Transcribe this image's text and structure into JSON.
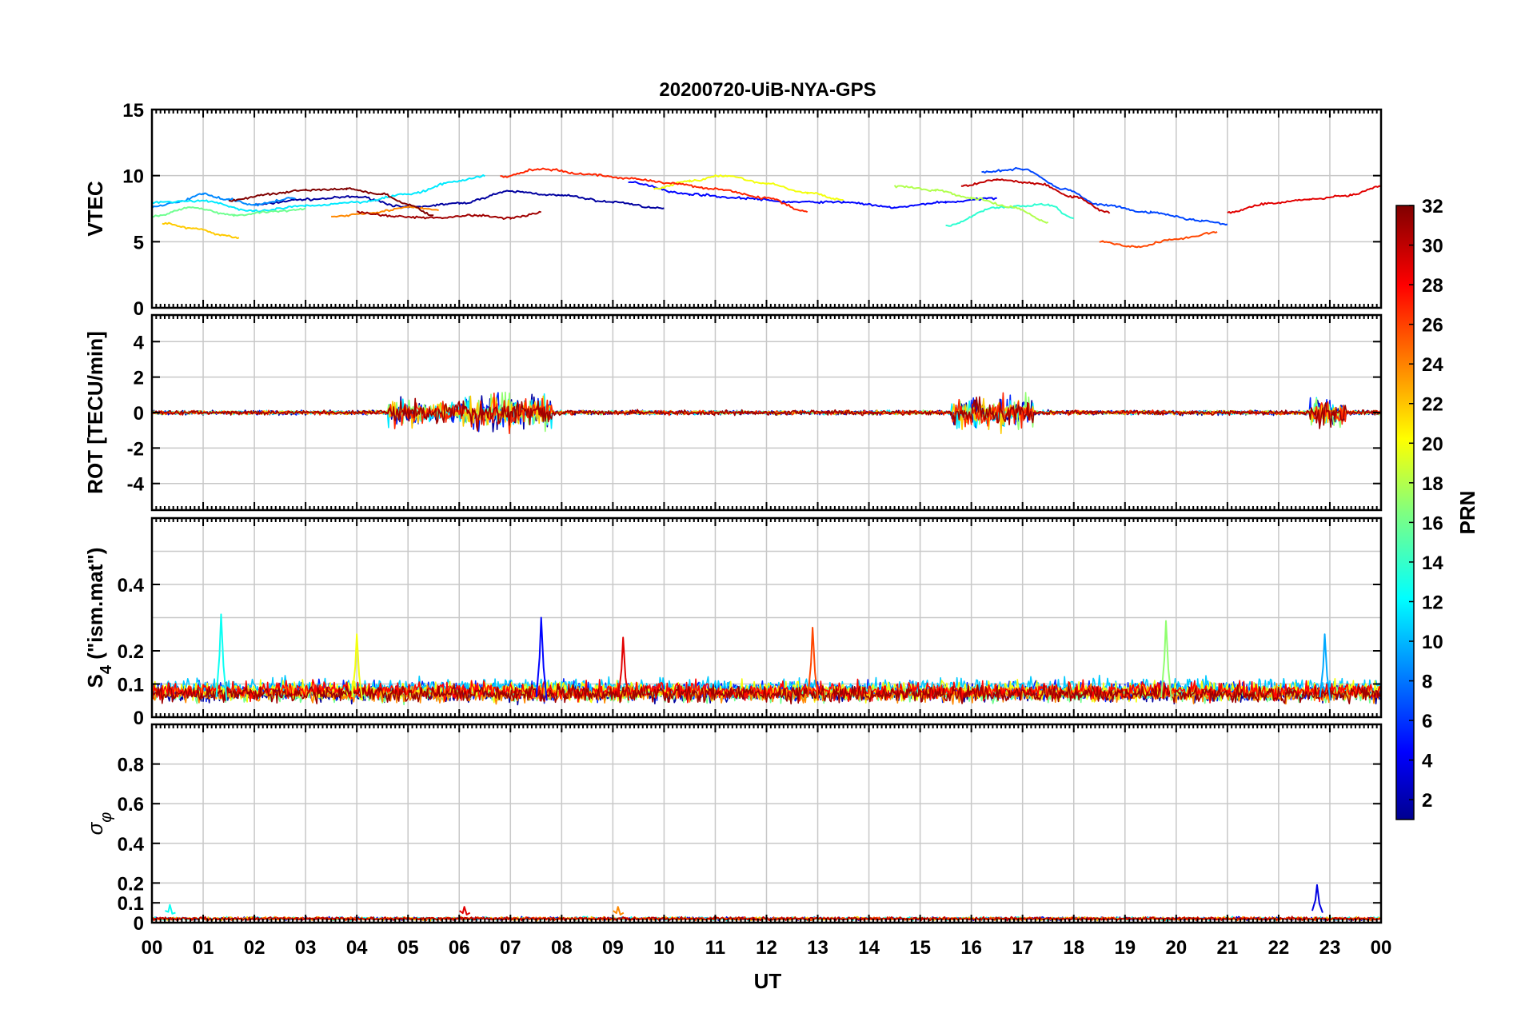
{
  "chart_data": {
    "type": "line",
    "title": "20200720-UiB-NYA-GPS",
    "xlabel": "UT",
    "x_tick_labels": [
      "00",
      "01",
      "02",
      "03",
      "04",
      "05",
      "06",
      "07",
      "08",
      "09",
      "10",
      "11",
      "12",
      "13",
      "14",
      "15",
      "16",
      "17",
      "18",
      "19",
      "20",
      "21",
      "22",
      "23",
      "00"
    ],
    "xlim": [
      0,
      24
    ],
    "grid": true,
    "colormap": "jet",
    "colorbar": {
      "label": "PRN",
      "range": [
        1,
        32
      ],
      "tick_labels": [
        "2",
        "4",
        "6",
        "8",
        "10",
        "12",
        "14",
        "16",
        "18",
        "20",
        "22",
        "24",
        "26",
        "28",
        "30",
        "32"
      ]
    },
    "panels": [
      {
        "ylabel": "VTEC",
        "ylim": [
          0,
          15
        ],
        "y_ticks": [
          0,
          5,
          10,
          15
        ],
        "y_tick_labels": [
          "0",
          "5",
          "10",
          "15"
        ],
        "style": "smooth",
        "series": [
          {
            "prn": 2,
            "x": [
              2.0,
              3.0,
              4.0,
              5.0,
              6.0,
              7.0,
              8.0,
              9.0,
              10.0
            ],
            "y": [
              7.8,
              8.2,
              8.4,
              7.6,
              7.9,
              8.8,
              8.5,
              8.0,
              7.5
            ]
          },
          {
            "prn": 5,
            "x": [
              9.3,
              10.5,
              11.5,
              12.5,
              13.5,
              14.5,
              15.5,
              16.5
            ],
            "y": [
              9.5,
              8.6,
              8.3,
              8.0,
              8.0,
              7.6,
              8.0,
              8.3
            ]
          },
          {
            "prn": 7,
            "x": [
              16.2,
              17.0,
              17.8,
              18.5,
              19.5,
              20.5,
              21.0
            ],
            "y": [
              10.3,
              10.5,
              9.0,
              7.8,
              7.2,
              6.6,
              6.3
            ]
          },
          {
            "prn": 9,
            "x": [
              0.0,
              0.5,
              1.0,
              1.5,
              2.0,
              2.8
            ],
            "y": [
              7.6,
              8.0,
              8.6,
              8.2,
              7.8,
              8.3
            ]
          },
          {
            "prn": 12,
            "x": [
              0.0,
              1.0,
              2.0,
              3.0,
              4.0,
              5.0,
              6.0,
              6.5
            ],
            "y": [
              8.0,
              8.1,
              7.3,
              7.7,
              8.0,
              8.6,
              9.6,
              10.0
            ]
          },
          {
            "prn": 14,
            "x": [
              15.5,
              16.5,
              17.5,
              18.0
            ],
            "y": [
              6.2,
              7.6,
              7.8,
              6.8
            ]
          },
          {
            "prn": 16,
            "x": [
              0.0,
              0.8,
              1.6,
              2.4,
              3.0
            ],
            "y": [
              6.9,
              7.6,
              7.0,
              7.3,
              7.5
            ]
          },
          {
            "prn": 18,
            "x": [
              14.5,
              15.3,
              16.0,
              16.8,
              17.5
            ],
            "y": [
              9.2,
              8.9,
              8.3,
              7.6,
              6.5
            ]
          },
          {
            "prn": 20,
            "x": [
              9.8,
              10.5,
              11.2,
              12.0,
              12.8,
              13.5
            ],
            "y": [
              9.0,
              9.6,
              10.0,
              9.4,
              8.7,
              8.2
            ]
          },
          {
            "prn": 22,
            "x": [
              0.2,
              0.8,
              1.4,
              1.7
            ],
            "y": [
              6.4,
              6.0,
              5.5,
              5.3
            ]
          },
          {
            "prn": 24,
            "x": [
              3.5,
              4.3,
              5.0,
              5.6
            ],
            "y": [
              6.9,
              7.2,
              7.6,
              7.4
            ]
          },
          {
            "prn": 26,
            "x": [
              18.5,
              19.2,
              20.0,
              20.8
            ],
            "y": [
              5.0,
              4.6,
              5.2,
              5.7
            ]
          },
          {
            "prn": 27,
            "x": [
              6.8,
              7.6,
              8.5,
              9.3,
              10.2,
              11.0,
              12.0,
              12.8
            ],
            "y": [
              9.9,
              10.5,
              10.1,
              9.8,
              9.4,
              9.0,
              8.3,
              7.3
            ]
          },
          {
            "prn": 29,
            "x": [
              21.0,
              21.8,
              22.6,
              23.4,
              24.0
            ],
            "y": [
              7.2,
              7.9,
              8.2,
              8.5,
              9.2
            ]
          },
          {
            "prn": 31,
            "x": [
              4.0,
              4.8,
              5.5,
              6.3,
              7.0,
              7.6
            ],
            "y": [
              7.2,
              6.9,
              6.8,
              7.0,
              6.8,
              7.2
            ]
          },
          {
            "prn": 32,
            "x": [
              1.5,
              2.3,
              3.0,
              3.8,
              4.5,
              5.0,
              5.5
            ],
            "y": [
              8.1,
              8.6,
              8.9,
              9.0,
              8.6,
              7.8,
              7.0
            ]
          },
          {
            "prn": 30,
            "x": [
              15.8,
              16.5,
              17.3,
              18.0,
              18.7
            ],
            "y": [
              9.2,
              9.7,
              9.4,
              8.4,
              7.2
            ]
          }
        ]
      },
      {
        "ylabel": "ROT [TECU/min]",
        "ylim": [
          -5.5,
          5.5
        ],
        "y_ticks": [
          -4,
          -2,
          0,
          2,
          4
        ],
        "y_tick_labels": [
          "-4",
          "-2",
          "0",
          "2",
          "4"
        ],
        "style": "noise",
        "bursts": [
          {
            "x": [
              4.6,
              6.0
            ],
            "amp": 1.3
          },
          {
            "x": [
              6.0,
              7.8
            ],
            "amp": 1.8
          },
          {
            "x": [
              15.6,
              17.2
            ],
            "amp": 1.6
          },
          {
            "x": [
              22.6,
              23.3
            ],
            "amp": 1.7
          }
        ],
        "series": [
          {
            "prn": 2,
            "base": 0.0,
            "amp": 0.18
          },
          {
            "prn": 6,
            "base": 0.0,
            "amp": 0.16
          },
          {
            "prn": 12,
            "base": 0.0,
            "amp": 0.15
          },
          {
            "prn": 17,
            "base": 0.0,
            "amp": 0.15
          },
          {
            "prn": 22,
            "base": 0.0,
            "amp": 0.15
          },
          {
            "prn": 27,
            "base": 0.0,
            "amp": 0.17
          },
          {
            "prn": 31,
            "base": 0.0,
            "amp": 0.18
          }
        ]
      },
      {
        "ylabel": "S_4 (\"ism.mat\")",
        "ylim": [
          0,
          0.6
        ],
        "y_ticks": [
          0,
          0.1,
          0.2,
          0.4
        ],
        "y_tick_labels": [
          "0",
          "0.1",
          "0.2",
          "0.4"
        ],
        "extra_grid": [
          0.3,
          0.5
        ],
        "style": "noise",
        "peaks": [
          {
            "x": 1.35,
            "y": 0.31,
            "prn": 13
          },
          {
            "x": 4.0,
            "y": 0.25,
            "prn": 20
          },
          {
            "x": 7.6,
            "y": 0.3,
            "prn": 5
          },
          {
            "x": 9.2,
            "y": 0.24,
            "prn": 29
          },
          {
            "x": 12.9,
            "y": 0.27,
            "prn": 26
          },
          {
            "x": 19.8,
            "y": 0.29,
            "prn": 17
          },
          {
            "x": 22.9,
            "y": 0.25,
            "prn": 10
          }
        ],
        "series": [
          {
            "prn": 2,
            "base": 0.07,
            "amp": 0.035
          },
          {
            "prn": 6,
            "base": 0.08,
            "amp": 0.04
          },
          {
            "prn": 11,
            "base": 0.09,
            "amp": 0.04
          },
          {
            "prn": 16,
            "base": 0.07,
            "amp": 0.035
          },
          {
            "prn": 20,
            "base": 0.08,
            "amp": 0.04
          },
          {
            "prn": 24,
            "base": 0.07,
            "amp": 0.035
          },
          {
            "prn": 28,
            "base": 0.08,
            "amp": 0.04
          },
          {
            "prn": 31,
            "base": 0.07,
            "amp": 0.035
          }
        ]
      },
      {
        "ylabel": "σ_φ",
        "ylim": [
          0,
          1
        ],
        "y_ticks": [
          0,
          0.1,
          0.2,
          0.4,
          0.6,
          0.8
        ],
        "y_tick_labels": [
          "0",
          "0.1",
          "0.2",
          "0.4",
          "0.6",
          "0.8"
        ],
        "style": "noise",
        "peaks": [
          {
            "x": 22.75,
            "y": 0.19,
            "prn": 4
          },
          {
            "x": 6.1,
            "y": 0.08,
            "prn": 29
          },
          {
            "x": 0.35,
            "y": 0.09,
            "prn": 13
          },
          {
            "x": 9.1,
            "y": 0.08,
            "prn": 24
          }
        ],
        "series": [
          {
            "prn": 4,
            "base": 0.02,
            "amp": 0.012
          },
          {
            "prn": 13,
            "base": 0.02,
            "amp": 0.012
          },
          {
            "prn": 22,
            "base": 0.02,
            "amp": 0.012
          },
          {
            "prn": 26,
            "base": 0.02,
            "amp": 0.012
          },
          {
            "prn": 30,
            "base": 0.02,
            "amp": 0.012
          }
        ]
      }
    ]
  }
}
